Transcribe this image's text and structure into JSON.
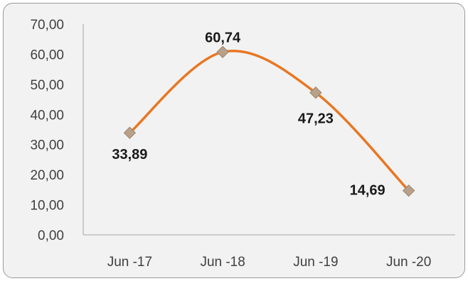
{
  "chart_data": {
    "type": "line",
    "categories": [
      "Jun -17",
      "Jun -18",
      "Jun -19",
      "Jun -20"
    ],
    "series": [
      {
        "values": [
          33.89,
          60.74,
          47.23,
          14.69
        ],
        "color": "#e87722",
        "marker_color": "#b8a089"
      }
    ],
    "data_labels": [
      "33,89",
      "60,74",
      "47,23",
      "14,69"
    ],
    "y_ticks": [
      "0,00",
      "10,00",
      "20,00",
      "30,00",
      "40,00",
      "50,00",
      "60,00",
      "70,00"
    ],
    "ylim": [
      0,
      70
    ],
    "smooth": true,
    "grid": false,
    "legend": "none",
    "title": "",
    "xlabel": "",
    "ylabel": ""
  }
}
